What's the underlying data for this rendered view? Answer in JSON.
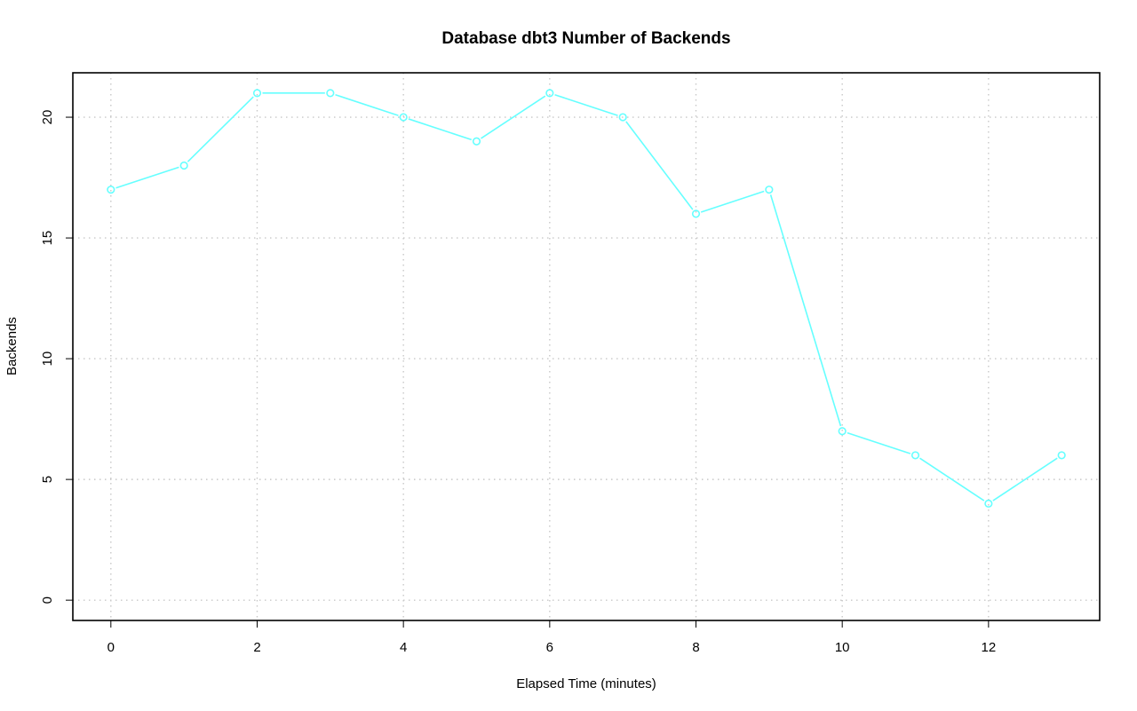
{
  "chart_data": {
    "type": "line",
    "title": "Database dbt3 Number of Backends",
    "xlabel": "Elapsed Time (minutes)",
    "ylabel": "Backends",
    "x": [
      0,
      1,
      2,
      3,
      4,
      5,
      6,
      7,
      8,
      9,
      10,
      11,
      12,
      13
    ],
    "series": [
      {
        "values": [
          17,
          18,
          21,
          21,
          20,
          19,
          21,
          20,
          16,
          17,
          7,
          6,
          4,
          6
        ],
        "color": "#66ffff"
      }
    ],
    "xlim": [
      -0.52,
      13.52
    ],
    "ylim": [
      -0.84,
      21.84
    ],
    "xticks": [
      0,
      2,
      4,
      6,
      8,
      10,
      12
    ],
    "yticks": [
      0,
      5,
      10,
      15,
      20
    ],
    "grid": true,
    "marker": "open-circle"
  }
}
